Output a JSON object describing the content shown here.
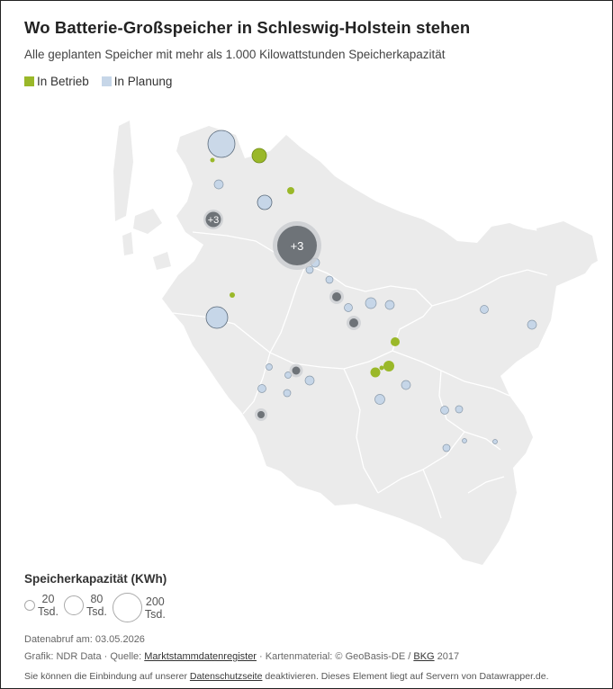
{
  "title": "Wo Batterie-Großspeicher in Schleswig-Holstein stehen",
  "subtitle": "Alle geplanten Speicher mit mehr als 1.000 Kilowattstunden Speicherkapazität",
  "legend": {
    "items": [
      {
        "label": "In Betrieb",
        "color": "#9ab829"
      },
      {
        "label": "In Planung",
        "color": "#c6d6e8"
      }
    ]
  },
  "colors": {
    "land": "#ebebeb",
    "border": "#ffffff",
    "operating": "#9ab829",
    "planned": "#c6d6e8",
    "cluster": "#6e7378"
  },
  "map": {
    "clusters": [
      {
        "label": "+3"
      },
      {
        "label": "+3"
      }
    ]
  },
  "size_legend": {
    "title": "Speicherkapazität (KWh)",
    "entries": [
      {
        "value": "20",
        "unit": "Tsd."
      },
      {
        "value": "80",
        "unit": "Tsd."
      },
      {
        "value": "200",
        "unit": "Tsd."
      }
    ]
  },
  "footer": {
    "date_line": "Datenabruf am: 03.05.2026",
    "credit_prefix": "Grafik: NDR Data · Quelle: ",
    "source_link": "Marktstammdatenregister",
    "credit_middle": " · Kartenmaterial: © GeoBasis-DE / ",
    "bkg_link": "BKG",
    "credit_suffix": " 2017",
    "privacy_prefix": "Sie können die Einbindung auf unserer ",
    "privacy_link": "Datenschutzseite",
    "privacy_suffix": " deaktivieren. Dieses Element liegt auf Servern von Datawrapper.de."
  }
}
